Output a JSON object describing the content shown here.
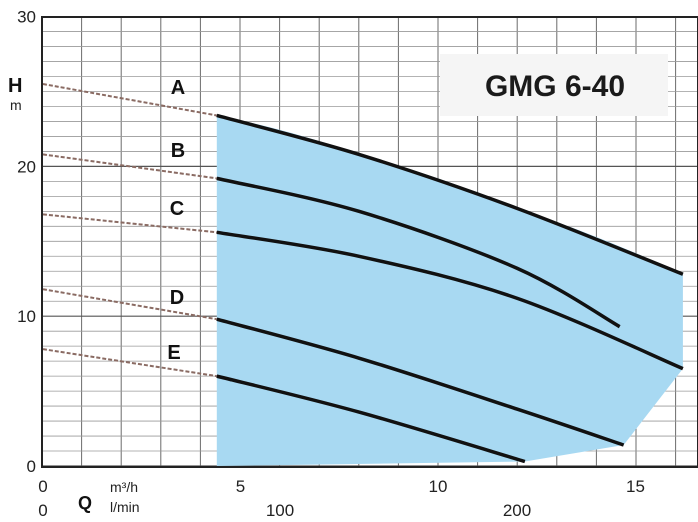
{
  "chart_data": {
    "type": "line",
    "title": "GMG 6-40",
    "ylabel": "H",
    "ylabel_unit": "m",
    "xlabel": "Q",
    "x_unit_m3h": "m³/h",
    "x_unit_lmin": "l/min",
    "xlim": [
      0,
      16.5
    ],
    "ylim": [
      0,
      30
    ],
    "x_ticks": [
      0,
      5,
      10,
      15
    ],
    "x_ticks_secondary": [
      0,
      100,
      200
    ],
    "y_ticks": [
      0,
      10,
      20,
      30
    ],
    "grid": true,
    "operating_range_fill": "#a8d9f2",
    "operating_range": {
      "q_min": 4.4,
      "upper": [
        [
          4.4,
          23.4
        ],
        [
          16.2,
          12.8
        ]
      ],
      "lower": [
        [
          16.2,
          6.5
        ],
        [
          14.7,
          1.4
        ],
        [
          12.2,
          0.3
        ],
        [
          4.4,
          0
        ]
      ]
    },
    "series": [
      {
        "name": "A",
        "x": [
          0,
          4.4,
          8,
          12,
          16.2
        ],
        "y": [
          25.5,
          23.4,
          20.8,
          17.2,
          12.8
        ]
      },
      {
        "name": "B",
        "x": [
          0,
          4.4,
          8,
          12,
          14.6
        ],
        "y": [
          20.8,
          19.2,
          17.0,
          13.2,
          9.3
        ]
      },
      {
        "name": "C",
        "x": [
          0,
          4.4,
          8,
          12,
          16.2
        ],
        "y": [
          16.8,
          15.6,
          14.0,
          11.2,
          6.5
        ]
      },
      {
        "name": "D",
        "x": [
          0,
          4.4,
          8,
          12,
          14.7
        ],
        "y": [
          11.8,
          9.8,
          7.2,
          3.8,
          1.4
        ]
      },
      {
        "name": "E",
        "x": [
          0,
          4.4,
          8,
          12.2
        ],
        "y": [
          7.8,
          6.0,
          3.6,
          0.3
        ]
      }
    ]
  }
}
